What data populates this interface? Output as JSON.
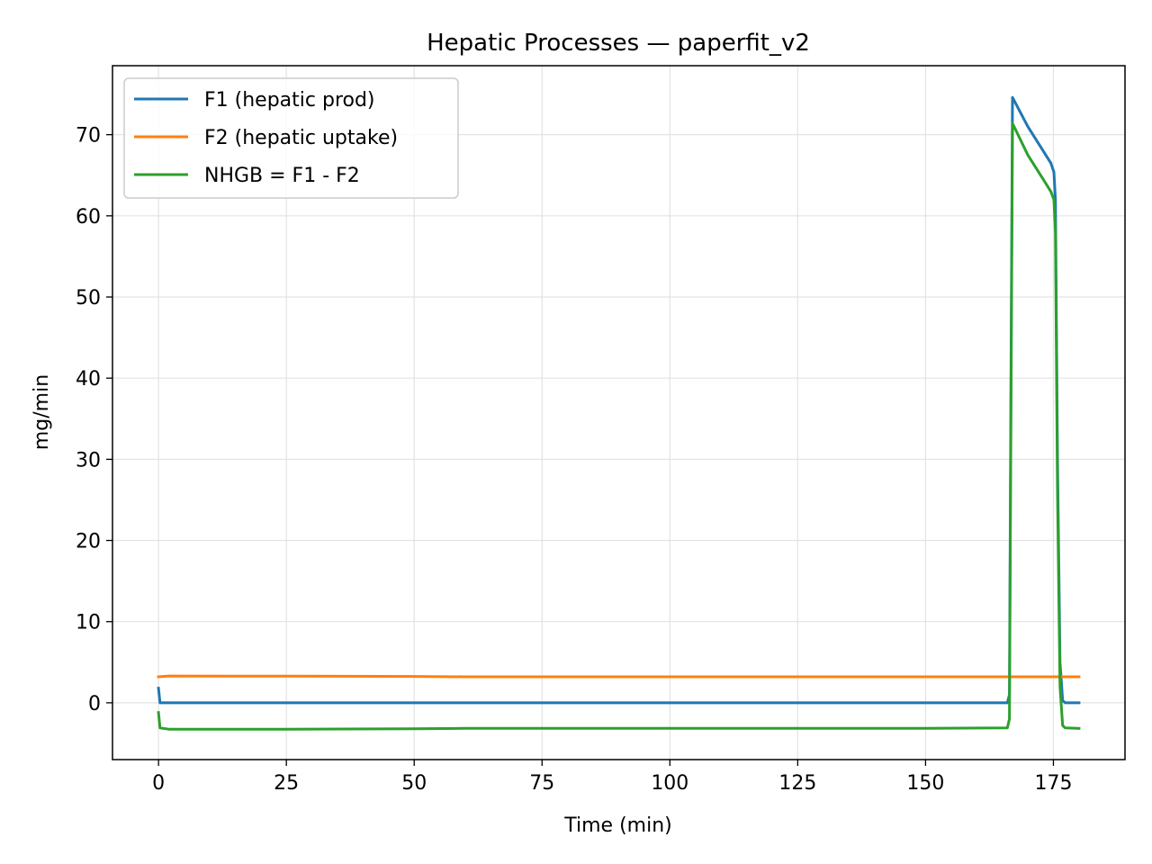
{
  "chart_data": {
    "type": "line",
    "title": "Hepatic Processes — paperfit_v2",
    "xlabel": "Time (min)",
    "ylabel": "mg/min",
    "xlim": [
      -9,
      189
    ],
    "ylim": [
      -7,
      78.5
    ],
    "xticks": [
      0,
      25,
      50,
      75,
      100,
      125,
      150,
      175
    ],
    "yticks": [
      0,
      10,
      20,
      30,
      40,
      50,
      60,
      70
    ],
    "grid": true,
    "legend_position": "top-left",
    "colors": {
      "F1": "#1f77b4",
      "F2": "#ff7f0e",
      "NHGB": "#2ca02c"
    },
    "series": [
      {
        "name": "F1 (hepatic prod)",
        "color": "#1f77b4",
        "points": [
          [
            0,
            1.8
          ],
          [
            0.3,
            0.0
          ],
          [
            50,
            0.0
          ],
          [
            100,
            0.0
          ],
          [
            150,
            0.0
          ],
          [
            166,
            0.0
          ],
          [
            166.4,
            1.0
          ],
          [
            166.7,
            40.0
          ],
          [
            167.0,
            74.6
          ],
          [
            170,
            71.0
          ],
          [
            173,
            68.0
          ],
          [
            174.5,
            66.5
          ],
          [
            175.1,
            65.4
          ],
          [
            175.4,
            62.0
          ],
          [
            175.8,
            30.0
          ],
          [
            176.3,
            5.0
          ],
          [
            176.8,
            0.3
          ],
          [
            177.3,
            0.0
          ],
          [
            180,
            0.0
          ]
        ]
      },
      {
        "name": "F2 (hepatic uptake)",
        "color": "#ff7f0e",
        "points": [
          [
            0,
            3.2
          ],
          [
            2,
            3.3
          ],
          [
            25,
            3.28
          ],
          [
            50,
            3.25
          ],
          [
            60,
            3.2
          ],
          [
            100,
            3.2
          ],
          [
            150,
            3.2
          ],
          [
            180,
            3.2
          ]
        ]
      },
      {
        "name": "NHGB = F1 - F2",
        "color": "#2ca02c",
        "points": [
          [
            0,
            -1.2
          ],
          [
            0.3,
            -3.1
          ],
          [
            2,
            -3.25
          ],
          [
            25,
            -3.25
          ],
          [
            50,
            -3.2
          ],
          [
            60,
            -3.15
          ],
          [
            100,
            -3.15
          ],
          [
            150,
            -3.15
          ],
          [
            166,
            -3.1
          ],
          [
            166.4,
            -2.0
          ],
          [
            166.7,
            36.0
          ],
          [
            167.0,
            71.4
          ],
          [
            170,
            67.5
          ],
          [
            173,
            64.5
          ],
          [
            174.5,
            63.0
          ],
          [
            175.1,
            62.0
          ],
          [
            175.4,
            58.0
          ],
          [
            175.8,
            26.0
          ],
          [
            176.3,
            2.0
          ],
          [
            176.8,
            -2.8
          ],
          [
            177.3,
            -3.1
          ],
          [
            180,
            -3.15
          ]
        ]
      }
    ]
  }
}
